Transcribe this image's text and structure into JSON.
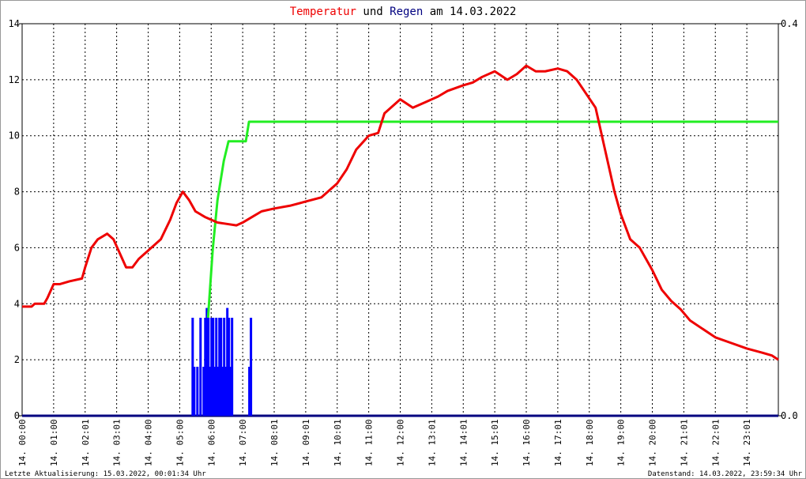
{
  "colors": {
    "temperature": "#ee0000",
    "rain": "#0000ff",
    "rain_cumulative": "#22ee22",
    "title_text": "#000000",
    "grid": "#000000",
    "baseline": "#000080"
  },
  "title": {
    "part1": "Temperatur",
    "part2": " und ",
    "part3": "Regen",
    "part4": " am 14.03.2022"
  },
  "footer": {
    "left": "Letzte Aktualisierung: 15.03.2022, 00:01:34 Uhr",
    "right": "Datenstand: 14.03.2022, 23:59:34 Uhr"
  },
  "chart_data": {
    "type": "line",
    "title": "Temperatur und Regen am 14.03.2022",
    "grid": true,
    "y_left": {
      "ticks": [
        "0",
        "2",
        "4",
        "6",
        "8",
        "10",
        "12",
        "14"
      ],
      "ylim": [
        0,
        14
      ]
    },
    "y_right": {
      "ticks": [
        "0.0",
        "0.4"
      ],
      "ylim": [
        0,
        0.4
      ]
    },
    "x_ticks": [
      "14. 00:00",
      "14. 01:00",
      "14. 02:01",
      "14. 03:01",
      "14. 04:00",
      "14. 05:00",
      "14. 06:00",
      "14. 07:00",
      "14. 08:01",
      "14. 09:01",
      "14. 10:01",
      "14. 11:00",
      "14. 12:00",
      "14. 13:01",
      "14. 14:01",
      "14. 15:01",
      "14. 16:00",
      "14. 17:01",
      "14. 18:00",
      "14. 19:00",
      "14. 20:00",
      "14. 21:01",
      "14. 22:01",
      "14. 23:01"
    ],
    "xlim_hours": [
      0,
      24
    ],
    "temperature": {
      "x_hours": [
        0,
        0.3,
        0.4,
        0.7,
        0.8,
        1.0,
        1.2,
        1.5,
        1.9,
        2.0,
        2.2,
        2.4,
        2.7,
        2.9,
        3.1,
        3.3,
        3.5,
        3.7,
        4.0,
        4.4,
        4.7,
        4.9,
        5.1,
        5.3,
        5.5,
        5.8,
        6.2,
        6.5,
        6.8,
        7.0,
        7.3,
        7.6,
        8.0,
        8.5,
        9.0,
        9.5,
        10.0,
        10.3,
        10.6,
        11.0,
        11.3,
        11.5,
        11.8,
        12.0,
        12.4,
        12.8,
        13.2,
        13.5,
        14.0,
        14.3,
        14.6,
        15.0,
        15.4,
        15.7,
        16.0,
        16.3,
        16.6,
        17.0,
        17.3,
        17.6,
        17.9,
        18.2,
        18.5,
        18.8,
        19.0,
        19.3,
        19.6,
        20.0,
        20.3,
        20.6,
        20.9,
        21.2,
        21.6,
        22.0,
        22.5,
        23.0,
        23.5,
        23.8,
        24.0
      ],
      "y": [
        3.9,
        3.9,
        4.0,
        4.0,
        4.2,
        4.7,
        4.7,
        4.8,
        4.9,
        5.3,
        6.0,
        6.3,
        6.5,
        6.3,
        5.8,
        5.3,
        5.3,
        5.6,
        5.9,
        6.3,
        7.0,
        7.6,
        8.0,
        7.7,
        7.3,
        7.1,
        6.9,
        6.85,
        6.8,
        6.9,
        7.1,
        7.3,
        7.4,
        7.5,
        7.65,
        7.8,
        8.3,
        8.8,
        9.5,
        10.0,
        10.1,
        10.8,
        11.1,
        11.3,
        11.0,
        11.2,
        11.4,
        11.6,
        11.8,
        11.9,
        12.1,
        12.3,
        12.0,
        12.2,
        12.5,
        12.3,
        12.3,
        12.4,
        12.3,
        12.0,
        11.5,
        11.0,
        9.5,
        8.0,
        7.2,
        6.3,
        6.0,
        5.2,
        4.5,
        4.1,
        3.8,
        3.4,
        3.1,
        2.8,
        2.6,
        2.4,
        2.25,
        2.15,
        2.0
      ]
    },
    "rain_cumulative": {
      "x_hours": [
        5.9,
        6.05,
        6.2,
        6.3,
        6.4,
        6.55,
        7.0,
        7.1,
        7.2,
        24.0
      ],
      "y": [
        0.1,
        0.17,
        0.22,
        0.24,
        0.26,
        0.28,
        0.28,
        0.28,
        0.3,
        0.3
      ]
    },
    "rain": {
      "x_hours": [
        5.4,
        5.45,
        5.55,
        5.65,
        5.75,
        5.8,
        5.85,
        5.9,
        5.95,
        6.0,
        6.05,
        6.1,
        6.15,
        6.2,
        6.25,
        6.3,
        6.35,
        6.4,
        6.45,
        6.5,
        6.55,
        6.6,
        6.65,
        7.2,
        7.25
      ],
      "y": [
        0.1,
        0.05,
        0.05,
        0.1,
        0.05,
        0.1,
        0.11,
        0.1,
        0.05,
        0.1,
        0.1,
        0.05,
        0.1,
        0.05,
        0.1,
        0.1,
        0.05,
        0.1,
        0.05,
        0.11,
        0.1,
        0.05,
        0.1,
        0.05,
        0.1
      ]
    }
  }
}
